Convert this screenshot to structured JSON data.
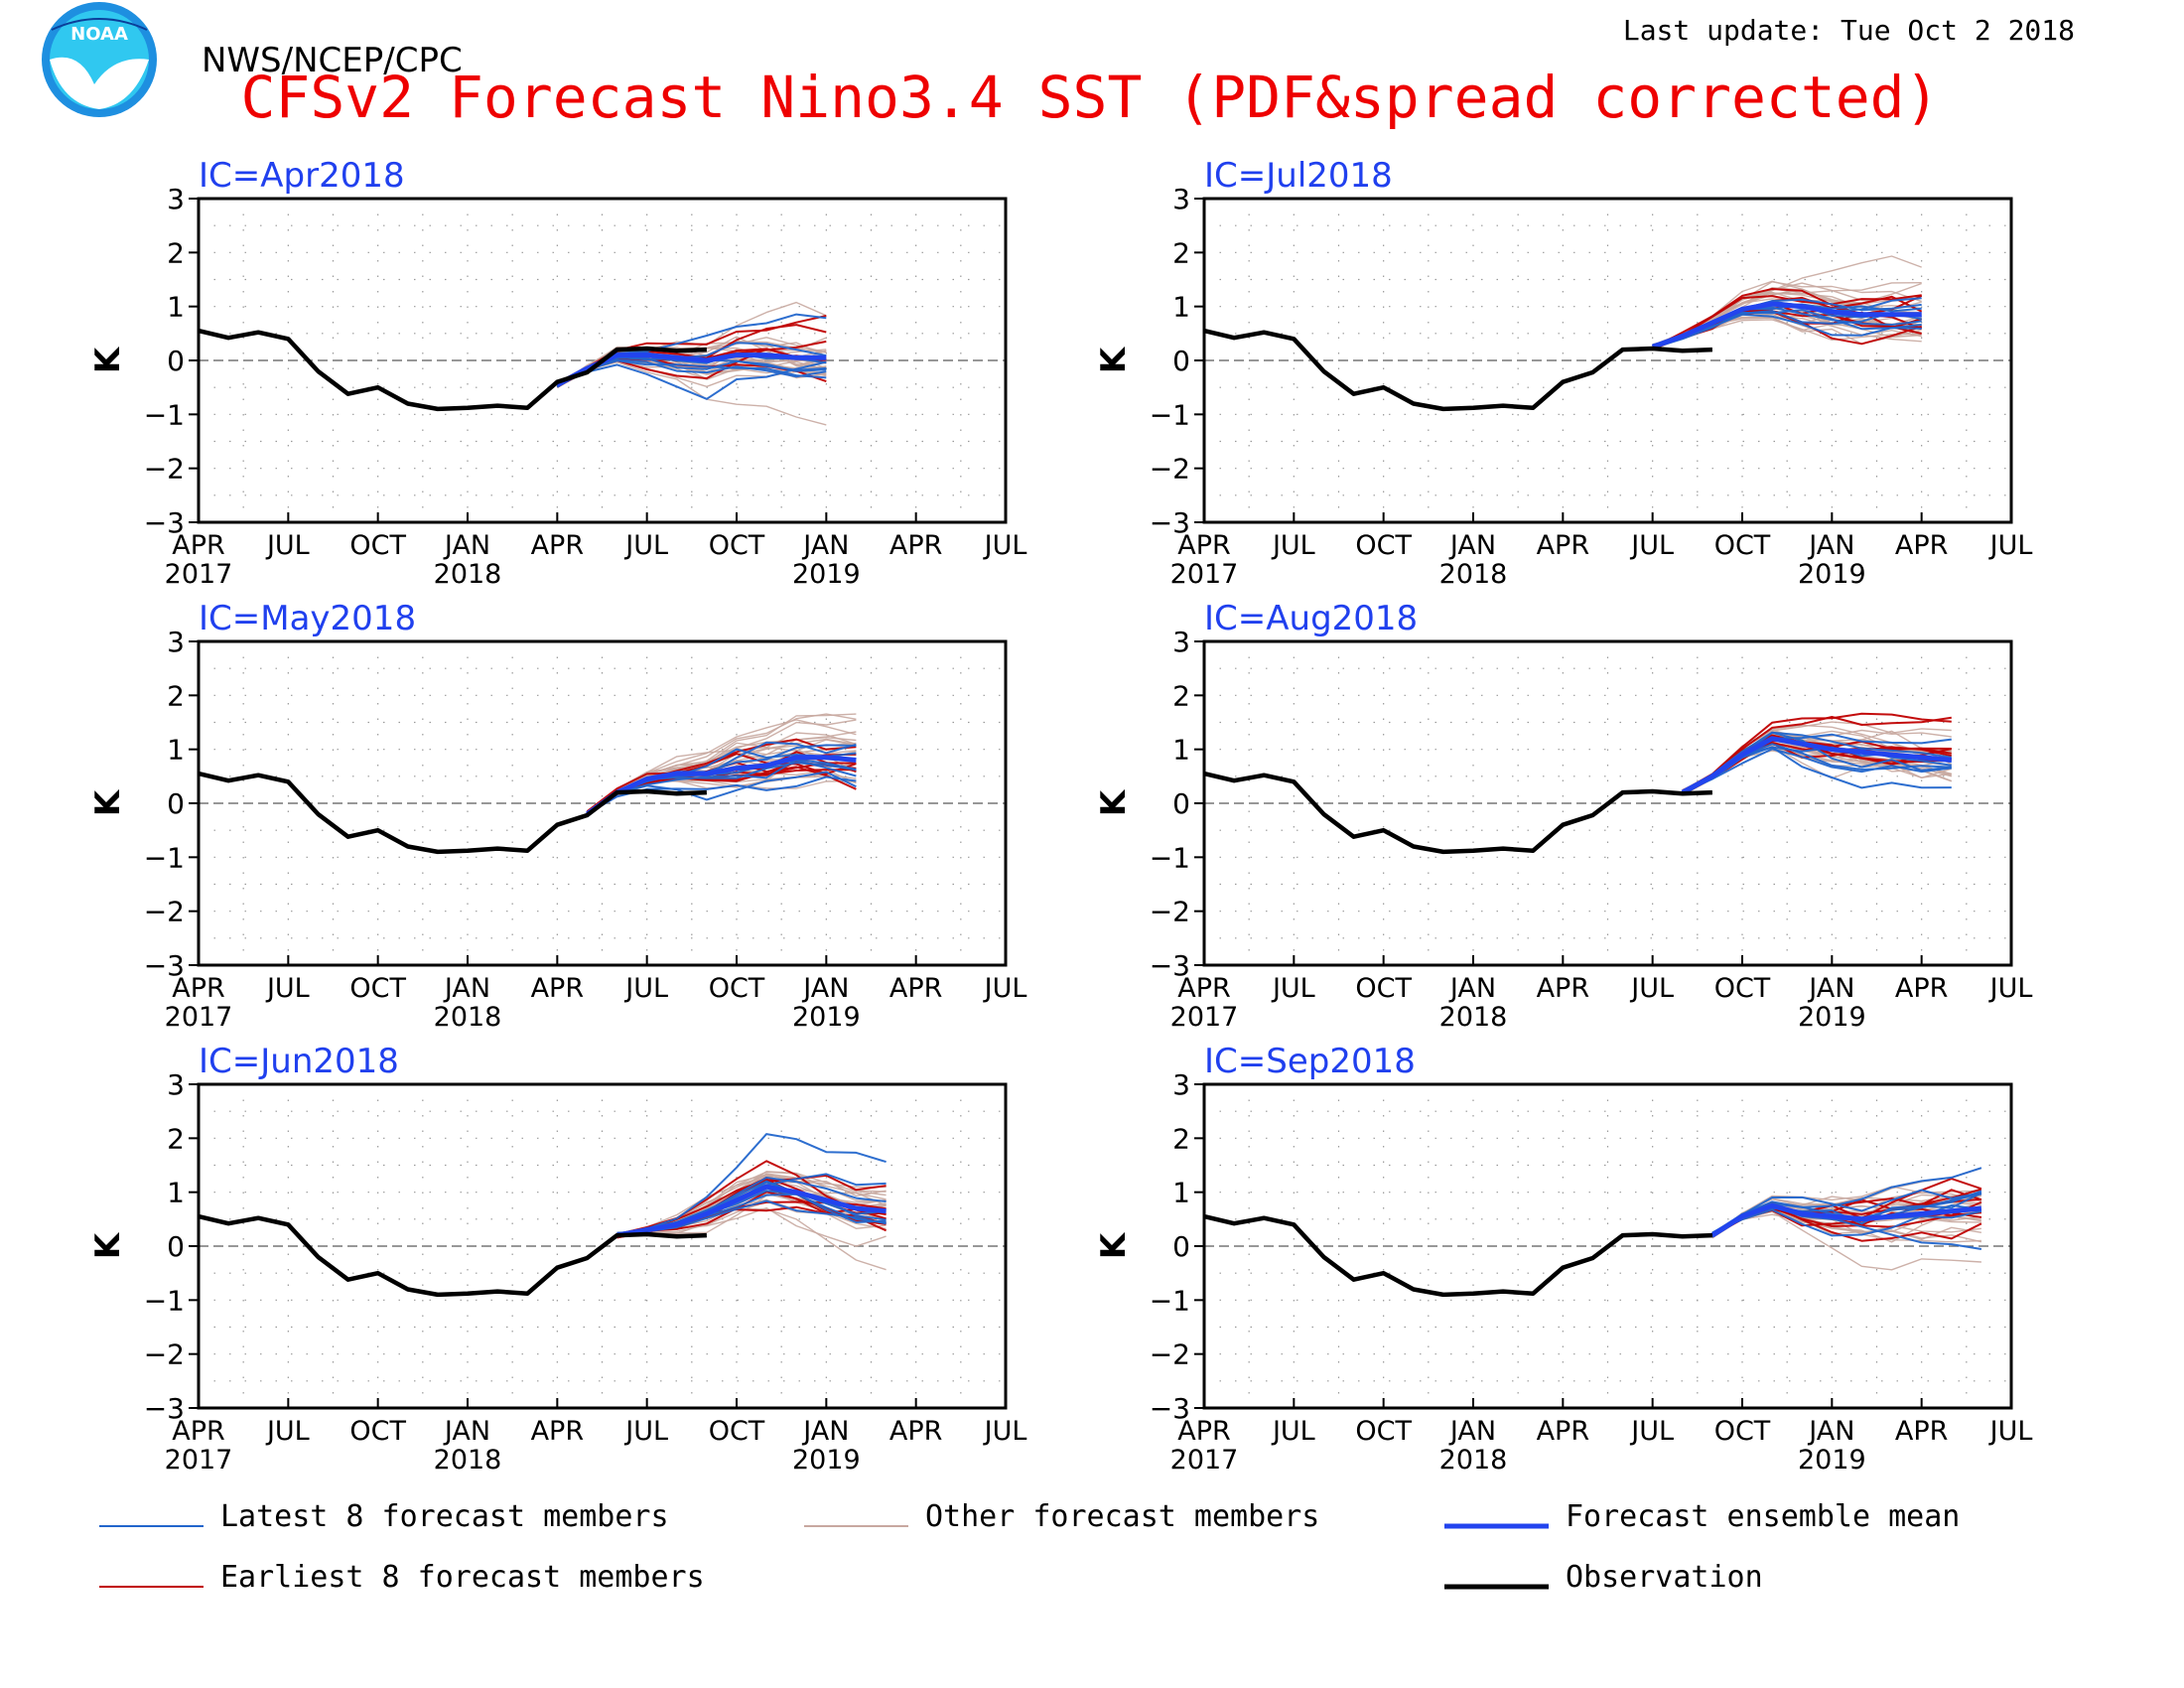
{
  "header": {
    "agency": "NWS/NCEP/CPC",
    "title": "CFSv2 Forecast Nino3.4 SST (PDF&spread corrected)",
    "last_update": "Last update: Tue Oct 2 2018",
    "logo_text": "NOAA"
  },
  "colors": {
    "title": "#ee0000",
    "panel_title": "#2040ee",
    "latest8": "#2266cc",
    "earliest8": "#c00000",
    "other": "#c8a8a0",
    "mean": "#2244ee",
    "observation": "#000000"
  },
  "legend": [
    {
      "key": "latest8",
      "label": "Latest 8 forecast members"
    },
    {
      "key": "other",
      "label": "Other forecast members"
    },
    {
      "key": "mean",
      "label": "Forecast ensemble mean"
    },
    {
      "key": "earliest8",
      "label": "Earliest 8 forecast members"
    },
    {
      "key": "observation",
      "label": "Observation"
    }
  ],
  "chart_data": [
    {
      "type": "line",
      "title": "IC=Apr2018",
      "ylabel": "K",
      "ylim": [
        -3,
        3
      ],
      "yticks": [
        "3",
        "2",
        "1",
        "0",
        "−1",
        "−2",
        "−3"
      ],
      "xticks": [
        {
          "label": "APR",
          "year": "2017"
        },
        {
          "label": "JUL",
          "year": ""
        },
        {
          "label": "OCT",
          "year": ""
        },
        {
          "label": "JAN",
          "year": "2018"
        },
        {
          "label": "APR",
          "year": ""
        },
        {
          "label": "JUL",
          "year": ""
        },
        {
          "label": "OCT",
          "year": ""
        },
        {
          "label": "JAN",
          "year": "2019"
        },
        {
          "label": "APR",
          "year": ""
        },
        {
          "label": "JUL",
          "year": ""
        }
      ],
      "observation": {
        "start": "2017-04",
        "values": [
          0.55,
          0.42,
          0.52,
          0.4,
          -0.2,
          -0.62,
          -0.5,
          -0.8,
          -0.9,
          -0.88,
          -0.84,
          -0.88,
          -0.4,
          -0.22,
          0.2,
          0.22,
          0.18,
          0.2
        ]
      },
      "forecast_start": "2018-04",
      "mean": [
        -0.45,
        -0.15,
        0.1,
        0.1,
        0.05,
        0.0,
        0.1,
        0.1,
        0.05,
        0.05
      ]
    },
    {
      "type": "line",
      "title": "IC=Jul2018",
      "ylabel": "K",
      "ylim": [
        -3,
        3
      ],
      "yticks": [
        "3",
        "2",
        "1",
        "0",
        "−1",
        "−2",
        "−3"
      ],
      "xticks": [
        {
          "label": "APR",
          "year": "2017"
        },
        {
          "label": "JUL",
          "year": ""
        },
        {
          "label": "OCT",
          "year": ""
        },
        {
          "label": "JAN",
          "year": "2018"
        },
        {
          "label": "APR",
          "year": ""
        },
        {
          "label": "JUL",
          "year": ""
        },
        {
          "label": "OCT",
          "year": ""
        },
        {
          "label": "JAN",
          "year": "2019"
        },
        {
          "label": "APR",
          "year": ""
        },
        {
          "label": "JUL",
          "year": ""
        }
      ],
      "observation": {
        "start": "2017-04",
        "values": [
          0.55,
          0.42,
          0.52,
          0.4,
          -0.2,
          -0.62,
          -0.5,
          -0.8,
          -0.9,
          -0.88,
          -0.84,
          -0.88,
          -0.4,
          -0.22,
          0.2,
          0.22,
          0.18,
          0.2
        ]
      },
      "forecast_start": "2018-07",
      "mean": [
        0.25,
        0.45,
        0.7,
        0.95,
        1.05,
        1.0,
        0.9,
        0.85,
        0.85,
        0.85
      ]
    },
    {
      "type": "line",
      "title": "IC=May2018",
      "ylabel": "K",
      "ylim": [
        -3,
        3
      ],
      "yticks": [
        "3",
        "2",
        "1",
        "0",
        "−1",
        "−2",
        "−3"
      ],
      "xticks": [
        {
          "label": "APR",
          "year": "2017"
        },
        {
          "label": "JUL",
          "year": ""
        },
        {
          "label": "OCT",
          "year": ""
        },
        {
          "label": "JAN",
          "year": "2018"
        },
        {
          "label": "APR",
          "year": ""
        },
        {
          "label": "JUL",
          "year": ""
        },
        {
          "label": "OCT",
          "year": ""
        },
        {
          "label": "JAN",
          "year": "2019"
        },
        {
          "label": "APR",
          "year": ""
        },
        {
          "label": "JUL",
          "year": ""
        }
      ],
      "observation": {
        "start": "2017-04",
        "values": [
          0.55,
          0.42,
          0.52,
          0.4,
          -0.2,
          -0.62,
          -0.5,
          -0.8,
          -0.9,
          -0.88,
          -0.84,
          -0.88,
          -0.4,
          -0.22,
          0.2,
          0.22,
          0.18,
          0.2
        ]
      },
      "forecast_start": "2018-05",
      "mean": [
        -0.2,
        0.2,
        0.45,
        0.55,
        0.55,
        0.65,
        0.7,
        0.85,
        0.85,
        0.8
      ]
    },
    {
      "type": "line",
      "title": "IC=Aug2018",
      "ylabel": "K",
      "ylim": [
        -3,
        3
      ],
      "yticks": [
        "3",
        "2",
        "1",
        "0",
        "−1",
        "−2",
        "−3"
      ],
      "xticks": [
        {
          "label": "APR",
          "year": "2017"
        },
        {
          "label": "JUL",
          "year": ""
        },
        {
          "label": "OCT",
          "year": ""
        },
        {
          "label": "JAN",
          "year": "2018"
        },
        {
          "label": "APR",
          "year": ""
        },
        {
          "label": "JUL",
          "year": ""
        },
        {
          "label": "OCT",
          "year": ""
        },
        {
          "label": "JAN",
          "year": "2019"
        },
        {
          "label": "APR",
          "year": ""
        },
        {
          "label": "JUL",
          "year": ""
        }
      ],
      "observation": {
        "start": "2017-04",
        "values": [
          0.55,
          0.42,
          0.52,
          0.4,
          -0.2,
          -0.62,
          -0.5,
          -0.8,
          -0.9,
          -0.88,
          -0.84,
          -0.88,
          -0.4,
          -0.22,
          0.2,
          0.22,
          0.18,
          0.2
        ]
      },
      "forecast_start": "2018-08",
      "mean": [
        0.2,
        0.5,
        0.9,
        1.2,
        1.1,
        1.0,
        0.95,
        0.9,
        0.85,
        0.8
      ]
    },
    {
      "type": "line",
      "title": "IC=Jun2018",
      "ylabel": "K",
      "ylim": [
        -3,
        3
      ],
      "yticks": [
        "3",
        "2",
        "1",
        "0",
        "−1",
        "−2",
        "−3"
      ],
      "xticks": [
        {
          "label": "APR",
          "year": "2017"
        },
        {
          "label": "JUL",
          "year": ""
        },
        {
          "label": "OCT",
          "year": ""
        },
        {
          "label": "JAN",
          "year": "2018"
        },
        {
          "label": "APR",
          "year": ""
        },
        {
          "label": "JUL",
          "year": ""
        },
        {
          "label": "OCT",
          "year": ""
        },
        {
          "label": "JAN",
          "year": "2019"
        },
        {
          "label": "APR",
          "year": ""
        },
        {
          "label": "JUL",
          "year": ""
        }
      ],
      "observation": {
        "start": "2017-04",
        "values": [
          0.55,
          0.42,
          0.52,
          0.4,
          -0.2,
          -0.62,
          -0.5,
          -0.8,
          -0.9,
          -0.88,
          -0.84,
          -0.88,
          -0.4,
          -0.22,
          0.2,
          0.22,
          0.18,
          0.2
        ]
      },
      "forecast_start": "2018-06",
      "mean": [
        0.2,
        0.3,
        0.4,
        0.6,
        0.85,
        1.1,
        1.0,
        0.85,
        0.7,
        0.65
      ]
    },
    {
      "type": "line",
      "title": "IC=Sep2018",
      "ylabel": "K",
      "ylim": [
        -3,
        3
      ],
      "yticks": [
        "3",
        "2",
        "1",
        "0",
        "−1",
        "−2",
        "−3"
      ],
      "xticks": [
        {
          "label": "APR",
          "year": "2017"
        },
        {
          "label": "JUL",
          "year": ""
        },
        {
          "label": "OCT",
          "year": ""
        },
        {
          "label": "JAN",
          "year": "2018"
        },
        {
          "label": "APR",
          "year": ""
        },
        {
          "label": "JUL",
          "year": ""
        },
        {
          "label": "OCT",
          "year": ""
        },
        {
          "label": "JAN",
          "year": "2019"
        },
        {
          "label": "APR",
          "year": ""
        },
        {
          "label": "JUL",
          "year": ""
        }
      ],
      "observation": {
        "start": "2017-04",
        "values": [
          0.55,
          0.42,
          0.52,
          0.4,
          -0.2,
          -0.62,
          -0.5,
          -0.8,
          -0.9,
          -0.88,
          -0.84,
          -0.88,
          -0.4,
          -0.22,
          0.2,
          0.22,
          0.18,
          0.2
        ]
      },
      "forecast_start": "2018-09",
      "mean": [
        0.2,
        0.55,
        0.75,
        0.6,
        0.55,
        0.5,
        0.55,
        0.6,
        0.65,
        0.7
      ]
    }
  ]
}
